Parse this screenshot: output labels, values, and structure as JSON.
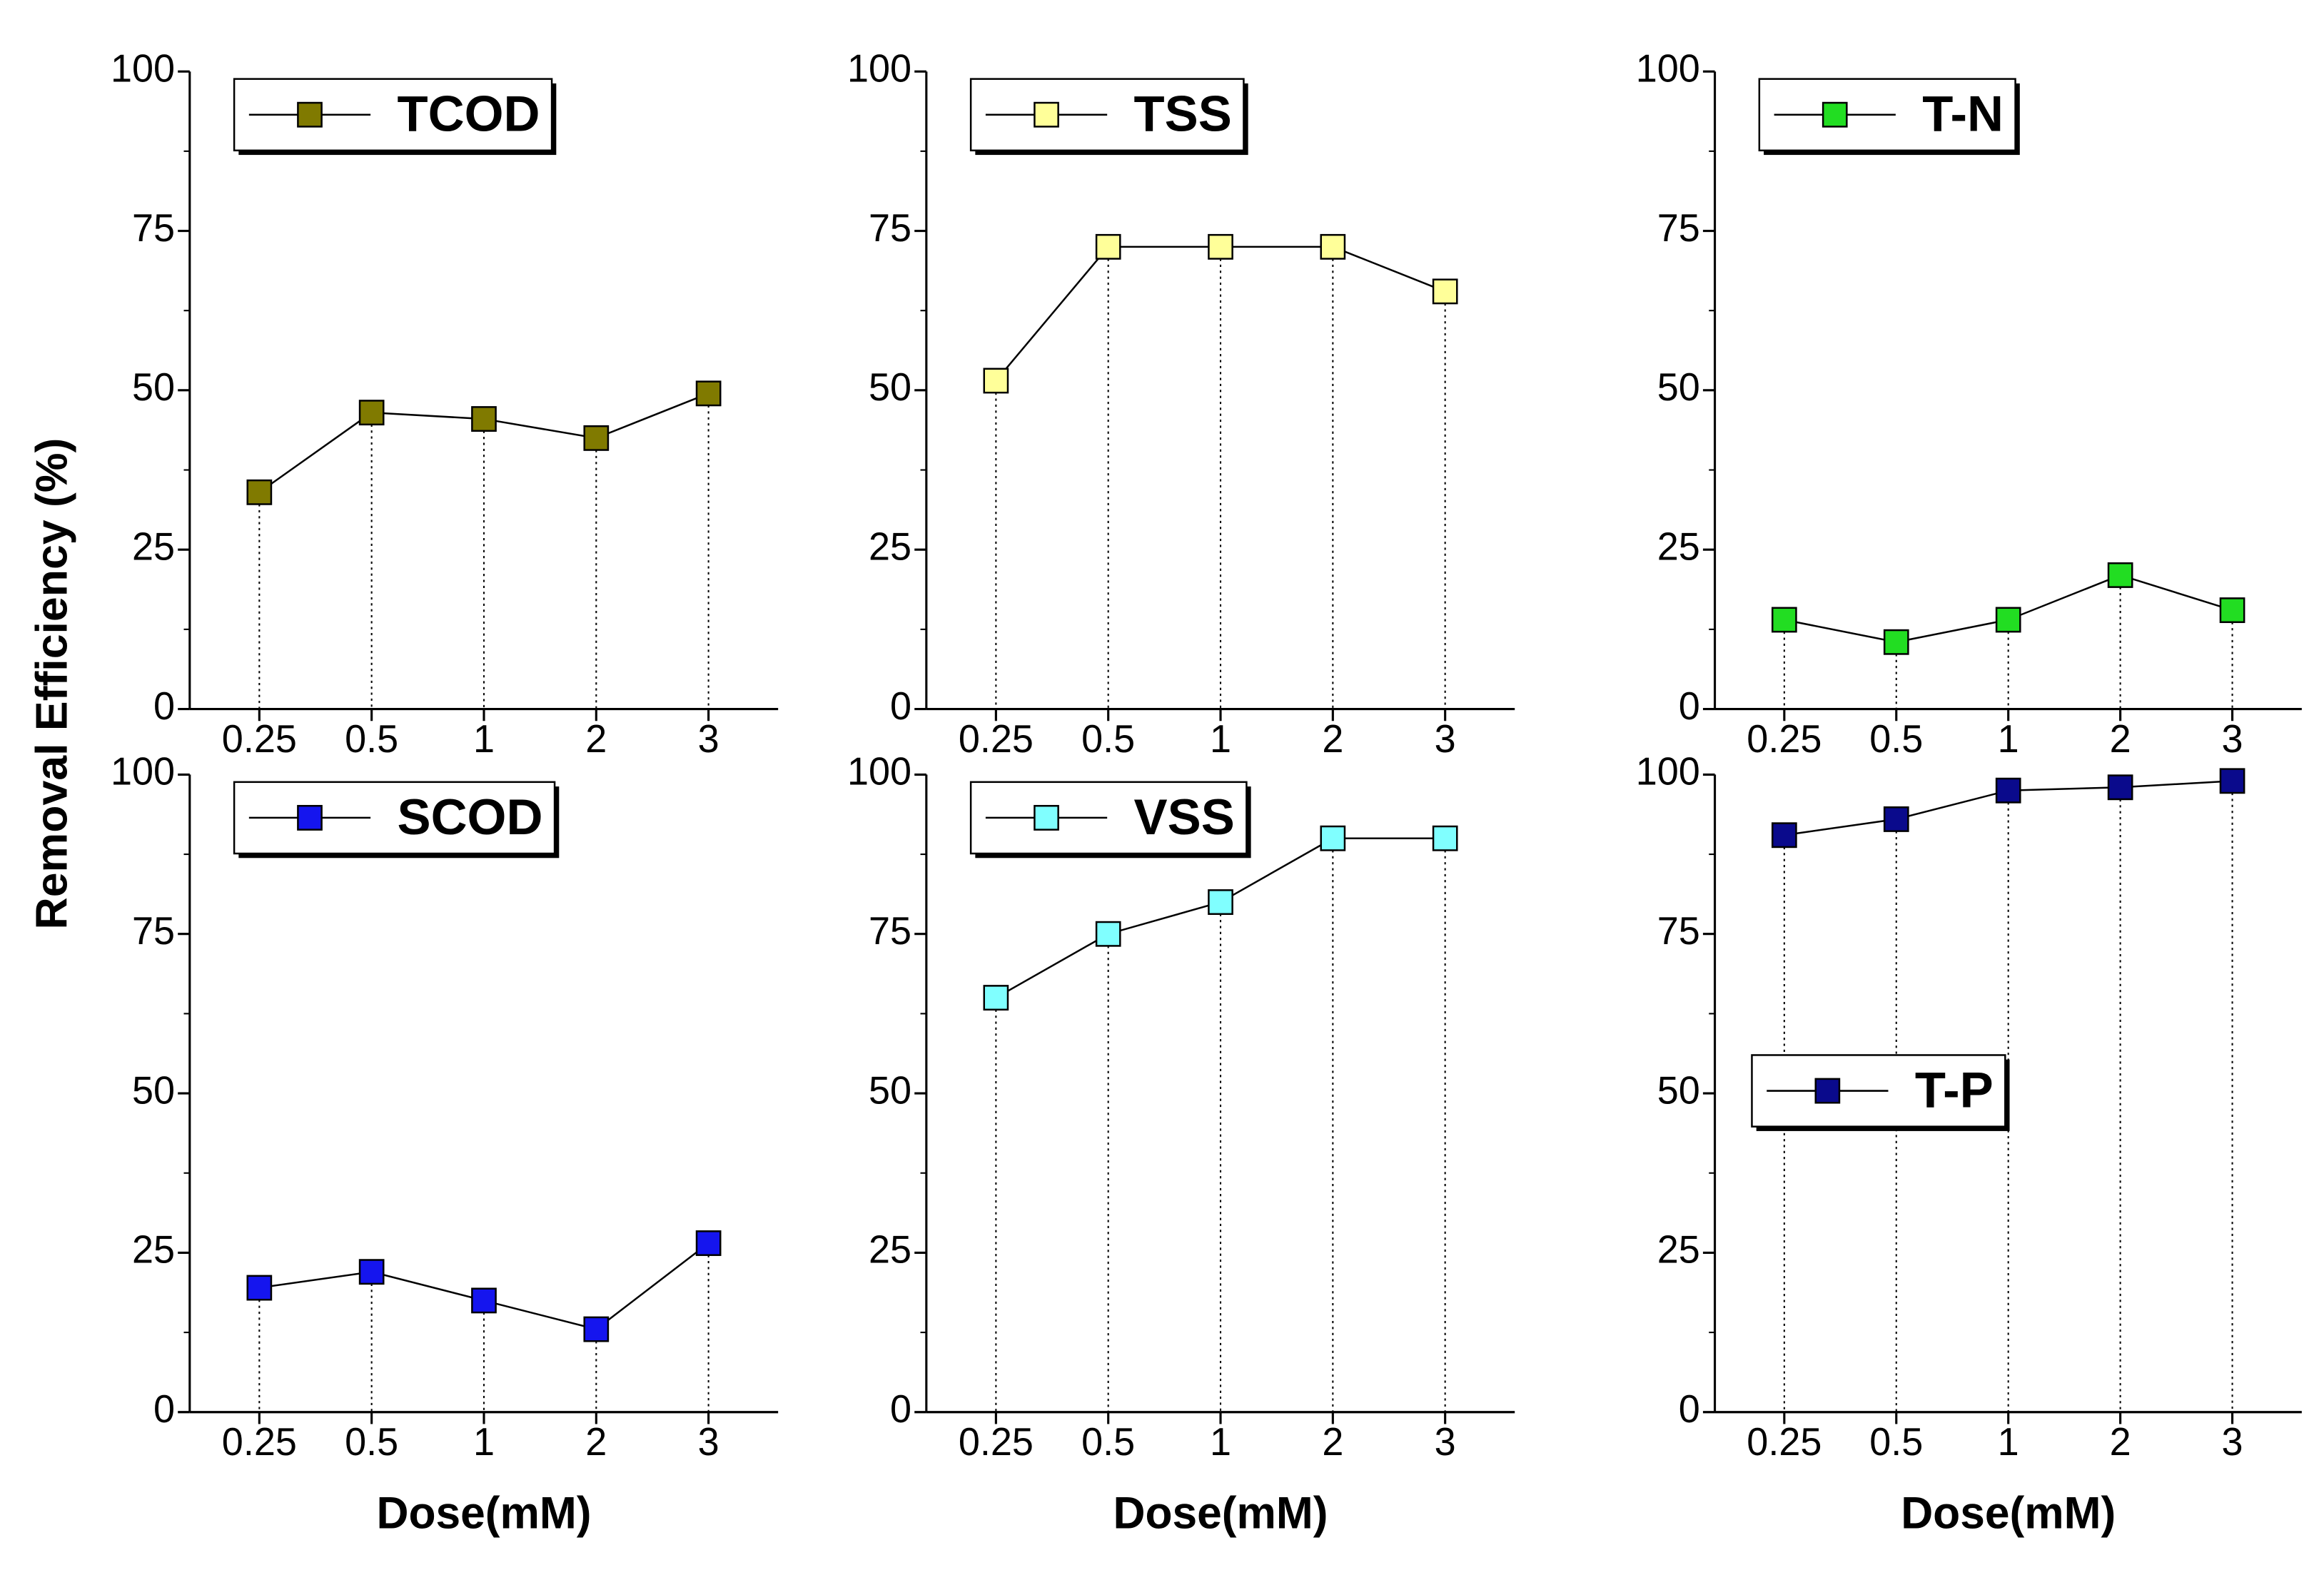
{
  "chart_data": [
    {
      "type": "line",
      "ylabel": "Removal Efficiency (%)",
      "categories": [
        "0.25",
        "0.5",
        "1",
        "2",
        "3"
      ],
      "series": [
        {
          "name": "TCOD",
          "color": "#807a00",
          "values": [
            34,
            46.5,
            45.5,
            42.5,
            49.5
          ]
        }
      ],
      "ylim": [
        0,
        100
      ],
      "yticks": [
        0,
        25,
        50,
        75,
        100
      ],
      "legend": "upper left",
      "droplines": true
    },
    {
      "type": "line",
      "categories": [
        "0.25",
        "0.5",
        "1",
        "2",
        "3"
      ],
      "series": [
        {
          "name": "TSS",
          "color": "#ffff99",
          "values": [
            51.5,
            72.5,
            72.5,
            72.5,
            65.5
          ]
        }
      ],
      "ylim": [
        0,
        100
      ],
      "yticks": [
        0,
        25,
        50,
        75,
        100
      ],
      "legend": "upper left",
      "droplines": true
    },
    {
      "type": "line",
      "categories": [
        "0.25",
        "0.5",
        "1",
        "2",
        "3"
      ],
      "series": [
        {
          "name": "T-N",
          "color": "#22dd22",
          "values": [
            14,
            10.5,
            14,
            21,
            15.5
          ]
        }
      ],
      "ylim": [
        0,
        100
      ],
      "yticks": [
        0,
        25,
        50,
        75,
        100
      ],
      "legend": "upper left",
      "droplines": true
    },
    {
      "type": "line",
      "xlabel": "Dose(mM)",
      "categories": [
        "0.25",
        "0.5",
        "1",
        "2",
        "3"
      ],
      "series": [
        {
          "name": "SCOD",
          "color": "#1515ee",
          "values": [
            19.5,
            22,
            17.5,
            13,
            26.5
          ]
        }
      ],
      "ylim": [
        0,
        100
      ],
      "yticks": [
        0,
        25,
        50,
        75,
        100
      ],
      "legend": "upper left",
      "droplines": true
    },
    {
      "type": "line",
      "xlabel": "Dose(mM)",
      "categories": [
        "0.25",
        "0.5",
        "1",
        "2",
        "3"
      ],
      "series": [
        {
          "name": "VSS",
          "color": "#80ffff",
          "values": [
            65,
            75,
            80,
            90,
            90
          ]
        }
      ],
      "ylim": [
        0,
        100
      ],
      "yticks": [
        0,
        25,
        50,
        75,
        100
      ],
      "legend": "upper left",
      "droplines": true
    },
    {
      "type": "line",
      "xlabel": "Dose(mM)",
      "categories": [
        "0.25",
        "0.5",
        "1",
        "2",
        "3"
      ],
      "series": [
        {
          "name": "T-P",
          "color": "#0a0a8c",
          "values": [
            90.5,
            93,
            97.5,
            98,
            99
          ]
        }
      ],
      "ylim": [
        0,
        100
      ],
      "yticks": [
        0,
        25,
        50,
        75,
        100
      ],
      "legend": "center left",
      "droplines": true
    }
  ]
}
